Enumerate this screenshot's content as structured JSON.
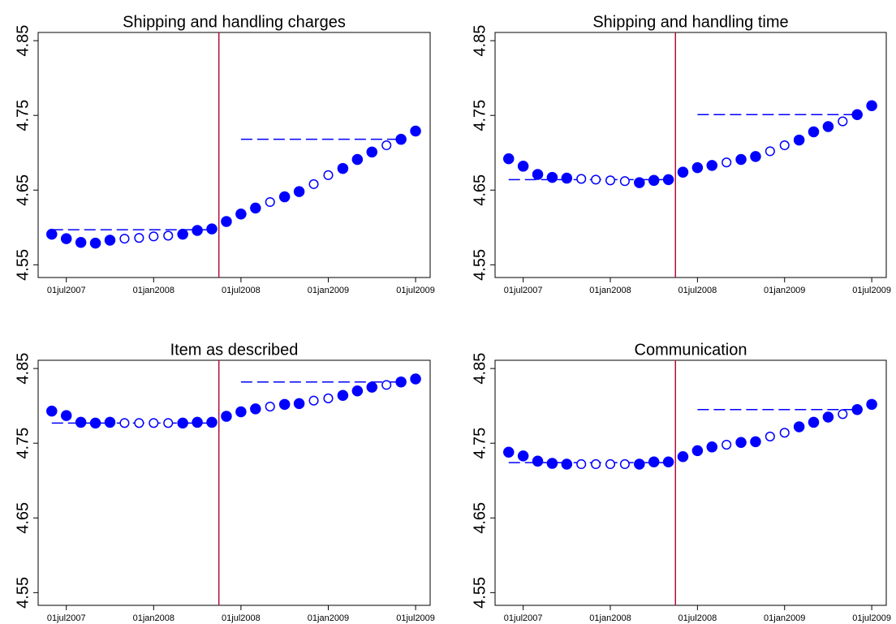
{
  "chart_data": [
    {
      "type": "scatter",
      "title": "Shipping and handling charges",
      "x": [
        "2007-06-01",
        "2007-07-01",
        "2007-08-01",
        "2007-09-01",
        "2007-10-01",
        "2007-11-01",
        "2007-12-01",
        "2008-01-01",
        "2008-02-01",
        "2008-03-01",
        "2008-04-01",
        "2008-05-01",
        "2008-06-01",
        "2008-07-01",
        "2008-08-01",
        "2008-09-01",
        "2008-10-01",
        "2008-11-01",
        "2008-12-01",
        "2009-01-01",
        "2009-02-01",
        "2009-03-01",
        "2009-04-01",
        "2009-05-01",
        "2009-06-01",
        "2009-07-01"
      ],
      "values": [
        4.591,
        4.585,
        4.58,
        4.579,
        4.583,
        4.585,
        4.586,
        4.588,
        4.589,
        4.591,
        4.596,
        4.598,
        4.608,
        4.618,
        4.626,
        4.634,
        4.641,
        4.648,
        4.658,
        4.67,
        4.679,
        4.691,
        4.701,
        4.71,
        4.718,
        4.729
      ],
      "filled": [
        true,
        true,
        true,
        true,
        true,
        false,
        false,
        false,
        false,
        true,
        true,
        true,
        true,
        true,
        true,
        false,
        true,
        true,
        false,
        false,
        true,
        true,
        true,
        false,
        true,
        true
      ],
      "segments": [
        {
          "x": [
            "2007-06-01",
            "2008-05-01"
          ],
          "value": 4.597
        },
        {
          "x": [
            "2008-07-01",
            "2009-06-01"
          ],
          "value": 4.718
        }
      ],
      "vline": "2008-05-16",
      "vline_color": "#b0103a",
      "color": "#0000ff",
      "xlim": [
        "2007-05-03",
        "2009-08-01"
      ],
      "xticks": [
        {
          "value": "2007-07-01",
          "label": "01jul2007"
        },
        {
          "value": "2008-01-01",
          "label": "01jan2008"
        },
        {
          "value": "2008-07-01",
          "label": "01jul2008"
        },
        {
          "value": "2009-01-01",
          "label": "01jan2009"
        },
        {
          "value": "2009-07-01",
          "label": "01jul2009"
        }
      ],
      "ylim": [
        4.533,
        4.861
      ],
      "yticks": [
        4.55,
        4.65,
        4.75,
        4.85
      ]
    },
    {
      "type": "scatter",
      "title": "Shipping and handling time",
      "x": [
        "2007-06-01",
        "2007-07-01",
        "2007-08-01",
        "2007-09-01",
        "2007-10-01",
        "2007-11-01",
        "2007-12-01",
        "2008-01-01",
        "2008-02-01",
        "2008-03-01",
        "2008-04-01",
        "2008-05-01",
        "2008-06-01",
        "2008-07-01",
        "2008-08-01",
        "2008-09-01",
        "2008-10-01",
        "2008-11-01",
        "2008-12-01",
        "2009-01-01",
        "2009-02-01",
        "2009-03-01",
        "2009-04-01",
        "2009-05-01",
        "2009-06-01",
        "2009-07-01"
      ],
      "values": [
        4.692,
        4.682,
        4.671,
        4.667,
        4.666,
        4.665,
        4.664,
        4.663,
        4.662,
        4.66,
        4.663,
        4.664,
        4.674,
        4.68,
        4.683,
        4.687,
        4.691,
        4.695,
        4.702,
        4.71,
        4.717,
        4.728,
        4.735,
        4.742,
        4.751,
        4.763
      ],
      "filled": [
        true,
        true,
        true,
        true,
        true,
        false,
        false,
        false,
        false,
        true,
        true,
        true,
        true,
        true,
        true,
        false,
        true,
        true,
        false,
        false,
        true,
        true,
        true,
        false,
        true,
        true
      ],
      "segments": [
        {
          "x": [
            "2007-06-01",
            "2008-05-01"
          ],
          "value": 4.664
        },
        {
          "x": [
            "2008-07-01",
            "2009-06-01"
          ],
          "value": 4.751
        }
      ],
      "vline": "2008-05-16",
      "vline_color": "#b0103a",
      "color": "#0000ff",
      "xlim": [
        "2007-05-03",
        "2009-08-01"
      ],
      "xticks": [
        {
          "value": "2007-07-01",
          "label": "01jul2007"
        },
        {
          "value": "2008-01-01",
          "label": "01jan2008"
        },
        {
          "value": "2008-07-01",
          "label": "01jul2008"
        },
        {
          "value": "2009-01-01",
          "label": "01jan2009"
        },
        {
          "value": "2009-07-01",
          "label": "01jul2009"
        }
      ],
      "ylim": [
        4.533,
        4.861
      ],
      "yticks": [
        4.55,
        4.65,
        4.75,
        4.85
      ]
    },
    {
      "type": "scatter",
      "title": "Item as described",
      "x": [
        "2007-06-01",
        "2007-07-01",
        "2007-08-01",
        "2007-09-01",
        "2007-10-01",
        "2007-11-01",
        "2007-12-01",
        "2008-01-01",
        "2008-02-01",
        "2008-03-01",
        "2008-04-01",
        "2008-05-01",
        "2008-06-01",
        "2008-07-01",
        "2008-08-01",
        "2008-09-01",
        "2008-10-01",
        "2008-11-01",
        "2008-12-01",
        "2009-01-01",
        "2009-02-01",
        "2009-03-01",
        "2009-04-01",
        "2009-05-01",
        "2009-06-01",
        "2009-07-01"
      ],
      "values": [
        4.793,
        4.787,
        4.778,
        4.777,
        4.778,
        4.777,
        4.777,
        4.777,
        4.777,
        4.777,
        4.778,
        4.778,
        4.786,
        4.792,
        4.796,
        4.799,
        4.802,
        4.803,
        4.807,
        4.81,
        4.814,
        4.82,
        4.825,
        4.828,
        4.832,
        4.836
      ],
      "filled": [
        true,
        true,
        true,
        true,
        true,
        false,
        false,
        false,
        false,
        true,
        true,
        true,
        true,
        true,
        true,
        false,
        true,
        true,
        false,
        false,
        true,
        true,
        true,
        false,
        true,
        true
      ],
      "segments": [
        {
          "x": [
            "2007-06-01",
            "2008-05-01"
          ],
          "value": 4.777
        },
        {
          "x": [
            "2008-07-01",
            "2009-06-01"
          ],
          "value": 4.832
        }
      ],
      "vline": "2008-05-16",
      "vline_color": "#b0103a",
      "color": "#0000ff",
      "xlim": [
        "2007-05-03",
        "2009-08-01"
      ],
      "xticks": [
        {
          "value": "2007-07-01",
          "label": "01jul2007"
        },
        {
          "value": "2008-01-01",
          "label": "01jan2008"
        },
        {
          "value": "2008-07-01",
          "label": "01jul2008"
        },
        {
          "value": "2009-01-01",
          "label": "01jan2009"
        },
        {
          "value": "2009-07-01",
          "label": "01jul2009"
        }
      ],
      "ylim": [
        4.533,
        4.861
      ],
      "yticks": [
        4.55,
        4.65,
        4.75,
        4.85
      ]
    },
    {
      "type": "scatter",
      "title": "Communication",
      "x": [
        "2007-06-01",
        "2007-07-01",
        "2007-08-01",
        "2007-09-01",
        "2007-10-01",
        "2007-11-01",
        "2007-12-01",
        "2008-01-01",
        "2008-02-01",
        "2008-03-01",
        "2008-04-01",
        "2008-05-01",
        "2008-06-01",
        "2008-07-01",
        "2008-08-01",
        "2008-09-01",
        "2008-10-01",
        "2008-11-01",
        "2008-12-01",
        "2009-01-01",
        "2009-02-01",
        "2009-03-01",
        "2009-04-01",
        "2009-05-01",
        "2009-06-01",
        "2009-07-01"
      ],
      "values": [
        4.738,
        4.733,
        4.726,
        4.723,
        4.722,
        4.722,
        4.722,
        4.722,
        4.722,
        4.722,
        4.725,
        4.725,
        4.732,
        4.74,
        4.745,
        4.748,
        4.751,
        4.752,
        4.759,
        4.764,
        4.772,
        4.778,
        4.785,
        4.789,
        4.795,
        4.802
      ],
      "filled": [
        true,
        true,
        true,
        true,
        true,
        false,
        false,
        false,
        false,
        true,
        true,
        true,
        true,
        true,
        true,
        false,
        true,
        true,
        false,
        false,
        true,
        true,
        true,
        false,
        true,
        true
      ],
      "segments": [
        {
          "x": [
            "2007-06-01",
            "2008-05-01"
          ],
          "value": 4.724
        },
        {
          "x": [
            "2008-07-01",
            "2009-06-01"
          ],
          "value": 4.795
        }
      ],
      "vline": "2008-05-16",
      "vline_color": "#b0103a",
      "color": "#0000ff",
      "xlim": [
        "2007-05-03",
        "2009-08-01"
      ],
      "xticks": [
        {
          "value": "2007-07-01",
          "label": "01jul2007"
        },
        {
          "value": "2008-01-01",
          "label": "01jan2008"
        },
        {
          "value": "2008-07-01",
          "label": "01jul2008"
        },
        {
          "value": "2009-01-01",
          "label": "01jan2009"
        },
        {
          "value": "2009-07-01",
          "label": "01jul2009"
        }
      ],
      "ylim": [
        4.533,
        4.861
      ],
      "yticks": [
        4.55,
        4.65,
        4.75,
        4.85
      ]
    }
  ]
}
